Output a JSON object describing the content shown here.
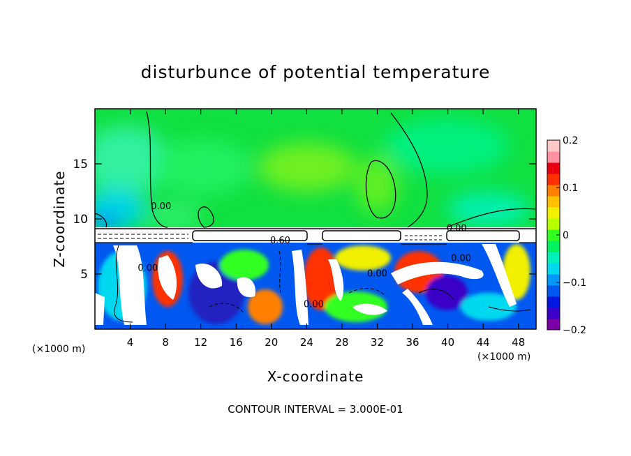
{
  "chart_data": {
    "type": "heatmap",
    "title": "disturbunce of potential temperature",
    "xlabel": "X-coordinate",
    "ylabel": "Z-coordinate",
    "x_unit_left": "(×1000 m)",
    "x_unit_right": "(×1000 m)",
    "xlim": [
      0,
      50
    ],
    "ylim": [
      0,
      20
    ],
    "x_ticks": [
      4,
      8,
      12,
      16,
      20,
      24,
      28,
      32,
      36,
      40,
      44,
      48
    ],
    "y_ticks": [
      5,
      10,
      15
    ],
    "colorbar": {
      "vmin": -0.2,
      "vmax": 0.2,
      "ticks": [
        0.2,
        0.1,
        0,
        -0.1,
        -0.2
      ],
      "tick_labels": [
        "0.2",
        "0.1",
        "0",
        "−0.1",
        "−0.2"
      ],
      "colors": [
        "#7b00a8",
        "#3a00c8",
        "#0018e0",
        "#0058f0",
        "#0098f8",
        "#00d8f0",
        "#00f0b8",
        "#00f060",
        "#30ff20",
        "#b8ff00",
        "#f0f000",
        "#ffc000",
        "#ff8000",
        "#ff3000",
        "#e80010",
        "#ff90a0",
        "#ffc8c8"
      ]
    },
    "contour_labels": [
      {
        "text": "0.60",
        "x": 21,
        "y": 8.1
      },
      {
        "text": "0.00",
        "x": 41,
        "y": 9.2
      },
      {
        "text": "0.00",
        "x": 7.5,
        "y": 11.2
      },
      {
        "text": "0.00",
        "x": 6.0,
        "y": 5.6
      },
      {
        "text": "0.00",
        "x": 24.8,
        "y": 2.3
      },
      {
        "text": "0.00",
        "x": 32.0,
        "y": 5.1
      },
      {
        "text": "0.00",
        "x": 41.5,
        "y": 6.5
      }
    ],
    "footer": "CONTOUR INTERVAL = 3.000E-01"
  }
}
